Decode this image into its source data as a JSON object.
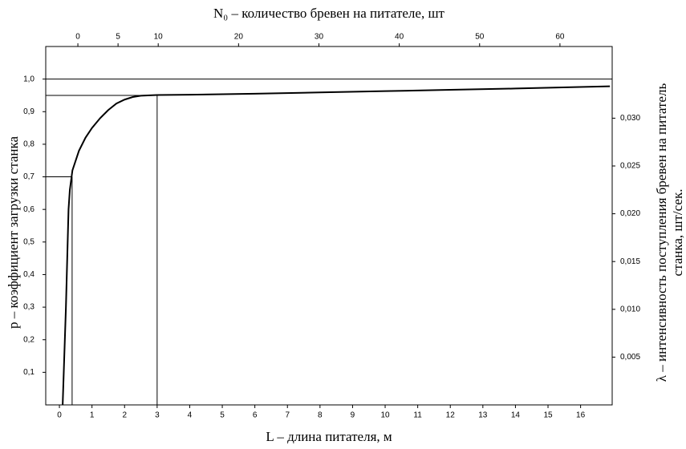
{
  "chart_data": {
    "type": "line",
    "title": "N₀ – количество бревен на питателе, шт",
    "x_label": "L – длина питателя, м",
    "y_label": "р – коэффициент загрузки станка",
    "y2_label": [
      "λ – интенсивность поступления бревен на питатель",
      "станка, шт/сек."
    ],
    "color": "#000000",
    "x": [
      0.1,
      0.2,
      0.28,
      0.32,
      0.4,
      0.6,
      0.8,
      1,
      1.25,
      1.5,
      1.75,
      2,
      2.25,
      2.5,
      3,
      4,
      6,
      8,
      10,
      12,
      14,
      16.9
    ],
    "values": [
      0,
      0.3,
      0.6,
      0.66,
      0.72,
      0.78,
      0.82,
      0.85,
      0.88,
      0.905,
      0.925,
      0.937,
      0.945,
      0.949,
      0.951,
      0.952,
      0.955,
      0.959,
      0.963,
      0.967,
      0.971,
      0.978
    ],
    "reference_lines": [
      {
        "x": 3,
        "y": 0.95
      },
      {
        "x": 0.39,
        "y": 0.7
      }
    ],
    "hline": 1.0,
    "xlim": [
      -0.42,
      16.97
    ],
    "xticks": [
      0,
      1,
      2,
      3,
      4,
      5,
      6,
      7,
      8,
      9,
      10,
      11,
      12,
      13,
      14,
      15,
      16
    ],
    "ylim": [
      0,
      1.1
    ],
    "yticks": [
      {
        "value": 0.1,
        "label": "0,1"
      },
      {
        "value": 0.2,
        "label": "0,2"
      },
      {
        "value": 0.3,
        "label": "0,3"
      },
      {
        "value": 0.4,
        "label": "0,4"
      },
      {
        "value": 0.5,
        "label": "0,5"
      },
      {
        "value": 0.6,
        "label": "0,6"
      },
      {
        "value": 0.7,
        "label": "0,7"
      },
      {
        "value": 0.8,
        "label": "0,8"
      },
      {
        "value": 0.9,
        "label": "0,9"
      },
      {
        "value": 1.0,
        "label": "1,0"
      }
    ],
    "x2lim": [
      -4,
      66.5
    ],
    "x2ticks": [
      0,
      5,
      10,
      20,
      30,
      40,
      50,
      60
    ],
    "y2lim": [
      0,
      0.0375
    ],
    "y2ticks": [
      {
        "value": 0.005,
        "label": "0,005"
      },
      {
        "value": 0.01,
        "label": "0,010"
      },
      {
        "value": 0.015,
        "label": "0,015"
      },
      {
        "value": 0.02,
        "label": "0,020"
      },
      {
        "value": 0.025,
        "label": "0,025"
      },
      {
        "value": 0.03,
        "label": "0,030"
      }
    ]
  }
}
